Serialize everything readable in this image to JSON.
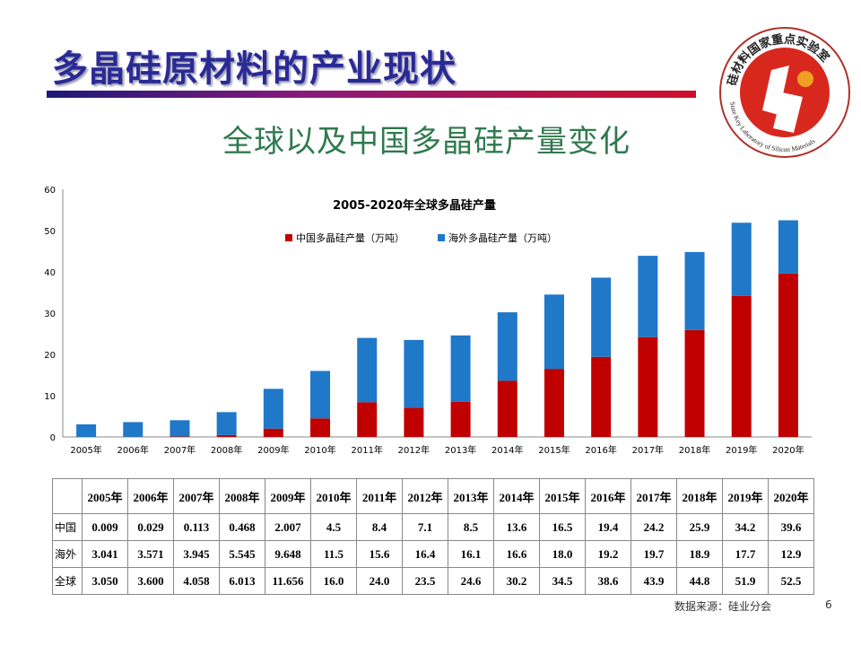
{
  "slide": {
    "title": "多晶硅原材料的产业现状",
    "subtitle": "全球以及中国多晶硅产量变化",
    "logo_text": "硅材料国家重点实验室 State Key Laboratory of Silicon Materials",
    "source": "数据来源：硅业分会",
    "page_number": "6"
  },
  "colors": {
    "china": "#c00000",
    "overseas": "#1f78c8",
    "title": "#2a2a96",
    "subtitle": "#2f7a4e"
  },
  "chart_data": {
    "type": "bar",
    "stacked": true,
    "title": "2005-2020年全球多晶硅产量",
    "categories": [
      "2005年",
      "2006年",
      "2007年",
      "2008年",
      "2009年",
      "2010年",
      "2011年",
      "2012年",
      "2013年",
      "2014年",
      "2015年",
      "2016年",
      "2017年",
      "2018年",
      "2019年",
      "2020年"
    ],
    "series": [
      {
        "name": "中国多晶硅产量（万吨）",
        "values": [
          0.009,
          0.029,
          0.113,
          0.468,
          2.007,
          4.5,
          8.4,
          7.1,
          8.5,
          13.6,
          16.5,
          19.4,
          24.2,
          25.9,
          34.2,
          39.6
        ]
      },
      {
        "name": "海外多晶硅产量（万吨）",
        "values": [
          3.041,
          3.571,
          3.945,
          5.545,
          9.648,
          11.5,
          15.6,
          16.4,
          16.1,
          16.6,
          18.0,
          19.2,
          19.7,
          18.9,
          17.7,
          12.9
        ]
      }
    ],
    "yticks": [
      "0",
      "10",
      "20",
      "30",
      "40",
      "50",
      "60"
    ],
    "ylim": [
      0,
      60
    ],
    "grid": false,
    "legend": "top"
  },
  "table": {
    "header": [
      "",
      "2005年",
      "2006年",
      "2007年",
      "2008年",
      "2009年",
      "2010年",
      "2011年",
      "2012年",
      "2013年",
      "2014年",
      "2015年",
      "2016年",
      "2017年",
      "2018年",
      "2019年",
      "2020年"
    ],
    "rows": [
      {
        "label": "中国",
        "values": [
          "0.009",
          "0.029",
          "0.113",
          "0.468",
          "2.007",
          "4.5",
          "8.4",
          "7.1",
          "8.5",
          "13.6",
          "16.5",
          "19.4",
          "24.2",
          "25.9",
          "34.2",
          "39.6"
        ]
      },
      {
        "label": "海外",
        "values": [
          "3.041",
          "3.571",
          "3.945",
          "5.545",
          "9.648",
          "11.5",
          "15.6",
          "16.4",
          "16.1",
          "16.6",
          "18.0",
          "19.2",
          "19.7",
          "18.9",
          "17.7",
          "12.9"
        ]
      },
      {
        "label": "全球",
        "values": [
          "3.050",
          "3.600",
          "4.058",
          "6.013",
          "11.656",
          "16.0",
          "24.0",
          "23.5",
          "24.6",
          "30.2",
          "34.5",
          "38.6",
          "43.9",
          "44.8",
          "51.9",
          "52.5"
        ]
      }
    ]
  }
}
